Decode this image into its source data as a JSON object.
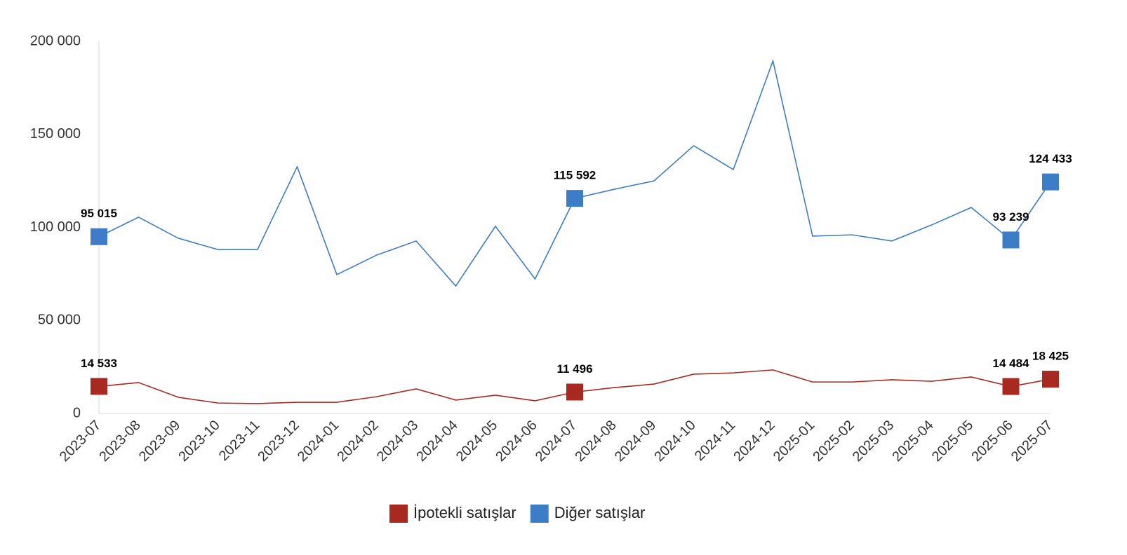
{
  "chart_data": {
    "type": "line",
    "categories": [
      "2023-07",
      "2023-08",
      "2023-09",
      "2023-10",
      "2023-11",
      "2023-12",
      "2024-01",
      "2024-02",
      "2024-03",
      "2024-04",
      "2024-05",
      "2024-06",
      "2024-07",
      "2024-08",
      "2024-09",
      "2024-10",
      "2024-11",
      "2024-12",
      "2025-01",
      "2025-02",
      "2025-03",
      "2025-04",
      "2025-05",
      "2025-06",
      "2025-07"
    ],
    "series": [
      {
        "name": "İpotekli satışlar",
        "color": "#a8291f",
        "values": [
          14533,
          16600,
          8700,
          5600,
          5300,
          6000,
          6000,
          9000,
          13200,
          7200,
          9800,
          6800,
          11496,
          13900,
          15800,
          21100,
          21800,
          23400,
          16900,
          16900,
          18100,
          17300,
          19600,
          14484,
          18425
        ],
        "value_labels": [
          "14 533",
          null,
          null,
          null,
          null,
          null,
          null,
          null,
          null,
          null,
          null,
          null,
          "11 496",
          null,
          null,
          null,
          null,
          null,
          null,
          null,
          null,
          null,
          null,
          "14 484",
          "18 425"
        ]
      },
      {
        "name": "Diğer satışlar",
        "color": "#3d7cc6",
        "values": [
          95015,
          105500,
          94200,
          88100,
          88100,
          132600,
          74600,
          85100,
          92700,
          68500,
          100600,
          72300,
          115592,
          120500,
          125000,
          143900,
          131100,
          189500,
          95300,
          96000,
          92700,
          101300,
          110700,
          93239,
          124433
        ],
        "value_labels": [
          "95 015",
          null,
          null,
          null,
          null,
          null,
          null,
          null,
          null,
          null,
          null,
          null,
          "115 592",
          null,
          null,
          null,
          null,
          null,
          null,
          null,
          null,
          null,
          null,
          "93 239",
          "124 433"
        ]
      }
    ],
    "ylim": [
      0,
      200000
    ],
    "yticks": [
      0,
      {
        "value": 50000,
        "label": "50 000"
      },
      {
        "value": 100000,
        "label": "100 000"
      },
      {
        "value": 150000,
        "label": "150 000"
      },
      {
        "value": 200000,
        "label": "200 000"
      }
    ],
    "grid": false,
    "legend": "bottom"
  }
}
